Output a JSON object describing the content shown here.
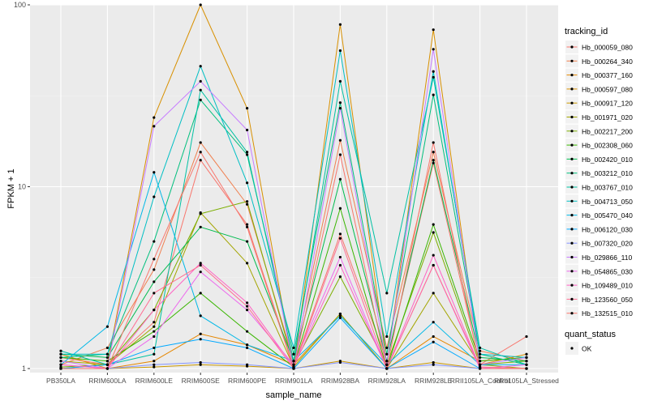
{
  "chart_data": {
    "type": "line",
    "xlabel": "sample_name",
    "ylabel": "FPKM + 1",
    "y_scale": "log10",
    "ylim": [
      0.95,
      100
    ],
    "y_ticks": [
      {
        "value": 1,
        "label": "1"
      },
      {
        "value": 10,
        "label": "10"
      },
      {
        "value": 100,
        "label": "100"
      }
    ],
    "categories": [
      "PB350LA",
      "RRIM600LA",
      "RRIM600LE",
      "RRIM600SE",
      "RRIM600PE",
      "RRIM901LA",
      "RRIM928BA",
      "RRIM928LA",
      "RRIM928LE",
      "RRII105LA_Control",
      "RRII105LA_Stressed"
    ],
    "legend": {
      "title": "tracking_id",
      "position": "right",
      "shape_title": "quant_status",
      "shape_entries": [
        "OK"
      ]
    },
    "series": [
      {
        "name": "Hb_000059_080",
        "color": "#F8766D",
        "values": [
          1.15,
          1.05,
          1.8,
          14,
          6.2,
          1.02,
          5.5,
          1.1,
          13.5,
          1.05,
          1.5
        ]
      },
      {
        "name": "Hb_000264_340",
        "color": "#F07F4E",
        "values": [
          1.05,
          1.3,
          3.5,
          17.5,
          8,
          1.1,
          18,
          1.3,
          15.5,
          1.25,
          1.1
        ]
      },
      {
        "name": "Hb_000377_160",
        "color": "#E58700",
        "values": [
          1.2,
          1.0,
          1.1,
          1.55,
          1.35,
          1.05,
          2.0,
          1.0,
          1.5,
          1.1,
          1.15
        ]
      },
      {
        "name": "Hb_000597_080",
        "color": "#D89000",
        "values": [
          1.0,
          1.05,
          24,
          100,
          27,
          1.0,
          78,
          1.05,
          73,
          1.05,
          1.2
        ]
      },
      {
        "name": "Hb_000917_120",
        "color": "#C99800",
        "values": [
          1.0,
          1.0,
          1.02,
          1.05,
          1.03,
          1.0,
          1.1,
          1.0,
          1.08,
          1.0,
          1.0
        ]
      },
      {
        "name": "Hb_001971_020",
        "color": "#A3A500",
        "values": [
          1.1,
          1.05,
          1.7,
          7.2,
          3.8,
          1.02,
          2.0,
          1.0,
          2.6,
          1.05,
          1.0
        ]
      },
      {
        "name": "Hb_002217_200",
        "color": "#7CAE00",
        "values": [
          1.02,
          1.05,
          2.1,
          7.1,
          8.3,
          1.05,
          3.2,
          1.05,
          5.6,
          1.05,
          1.1
        ]
      },
      {
        "name": "Hb_002308_060",
        "color": "#39B600",
        "values": [
          1.15,
          1.1,
          1.6,
          2.6,
          1.6,
          1.02,
          7.6,
          1.0,
          6.2,
          1.1,
          1.15
        ]
      },
      {
        "name": "Hb_002420_010",
        "color": "#00BB4E",
        "values": [
          1.2,
          1.15,
          3.0,
          6.0,
          5.0,
          1.1,
          11,
          1.1,
          14,
          1.15,
          1.1
        ]
      },
      {
        "name": "Hb_003212_010",
        "color": "#00BF7D",
        "values": [
          1.15,
          1.2,
          5.0,
          30,
          15,
          1.2,
          29,
          1.2,
          32,
          1.2,
          1.05
        ]
      },
      {
        "name": "Hb_003767_010",
        "color": "#00C1A3",
        "values": [
          1.25,
          1.05,
          1.2,
          34,
          15.5,
          1.1,
          38,
          2.6,
          40,
          1.3,
          1.05
        ]
      },
      {
        "name": "Hb_004713_050",
        "color": "#00BFC4",
        "values": [
          1.2,
          1.2,
          8.8,
          46,
          10.5,
          1.3,
          56,
          1.5,
          43,
          1.2,
          1.15
        ]
      },
      {
        "name": "Hb_005470_040",
        "color": "#00B8E7",
        "values": [
          1.05,
          1.7,
          12,
          1.95,
          1.35,
          1.1,
          1.95,
          1.05,
          1.8,
          1.05,
          1.05
        ]
      },
      {
        "name": "Hb_006120_030",
        "color": "#00A9FF",
        "values": [
          1.0,
          1.05,
          1.3,
          1.45,
          1.3,
          1.0,
          1.9,
          1.0,
          1.4,
          1.0,
          1.0
        ]
      },
      {
        "name": "Hb_007320_020",
        "color": "#8494FF",
        "values": [
          1.0,
          1.0,
          1.05,
          1.08,
          1.05,
          1.0,
          1.08,
          1.0,
          1.05,
          1.0,
          1.0
        ]
      },
      {
        "name": "Hb_029866_110",
        "color": "#C77CFF",
        "values": [
          1.1,
          1.0,
          21.5,
          38,
          20.5,
          1.0,
          27,
          1.05,
          57,
          1.05,
          1.15
        ]
      },
      {
        "name": "Hb_054865_030",
        "color": "#ED68ED",
        "values": [
          1.05,
          1.0,
          1.5,
          3.4,
          2.1,
          1.05,
          4.1,
          1.0,
          3.7,
          1.0,
          1.05
        ]
      },
      {
        "name": "Hb_109489_010",
        "color": "#FF61C3",
        "values": [
          1.05,
          1.0,
          2.1,
          3.8,
          2.3,
          1.02,
          3.7,
          1.0,
          4.2,
          1.02,
          1.0
        ]
      },
      {
        "name": "Hb_123560_050",
        "color": "#FF6C91",
        "values": [
          1.0,
          1.0,
          2.6,
          3.7,
          2.2,
          1.0,
          5.2,
          1.0,
          3.7,
          1.02,
          1.0
        ]
      },
      {
        "name": "Hb_132515_010",
        "color": "#F8766D",
        "values": [
          1.0,
          1.0,
          4.0,
          15.5,
          6.0,
          1.0,
          15,
          1.0,
          17.5,
          1.0,
          1.0
        ]
      }
    ]
  }
}
